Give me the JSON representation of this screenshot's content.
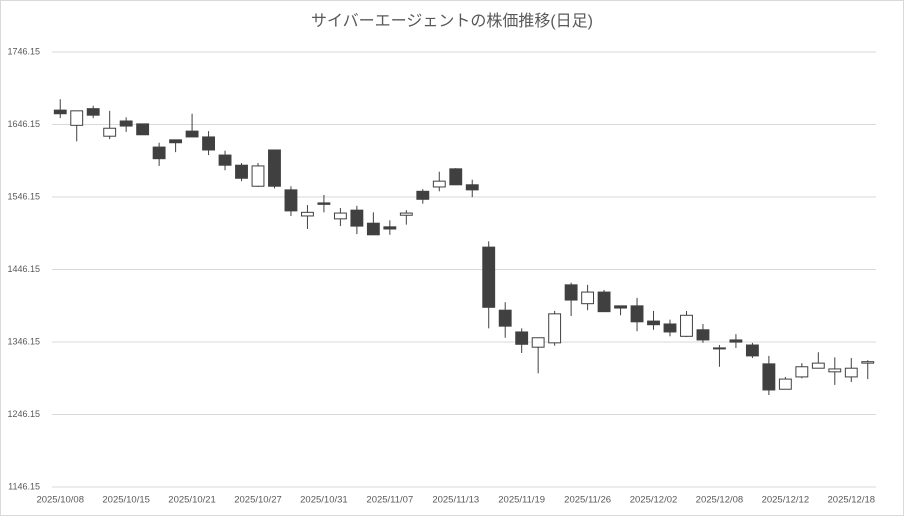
{
  "chart_data": {
    "type": "candlestick",
    "title": "サイバーエージェントの株価推移(日足)",
    "categories": [
      "2025/10/08",
      null,
      null,
      null,
      "2025/10/15",
      null,
      null,
      null,
      "2025/10/21",
      null,
      null,
      null,
      "2025/10/27",
      null,
      null,
      null,
      "2025/10/31",
      null,
      null,
      null,
      "2025/11/07",
      null,
      null,
      null,
      "2025/11/13",
      null,
      null,
      null,
      "2025/11/19",
      null,
      null,
      null,
      "2025/11/26",
      null,
      null,
      null,
      "2025/12/02",
      null,
      null,
      null,
      "2025/12/08",
      null,
      null,
      null,
      "2025/12/12",
      null,
      null,
      null,
      "2025/12/18",
      null
    ],
    "open": [
      1666,
      1645,
      1668,
      1630,
      1651,
      1647,
      1615,
      1625,
      1637,
      1629,
      1604,
      1590,
      1561,
      1611,
      1556,
      1520,
      1538,
      1516,
      1528,
      1510,
      1505,
      1521,
      1554,
      1560,
      1585,
      1563,
      1477,
      1390,
      1360,
      1339,
      1345,
      1425,
      1399,
      1415,
      1396,
      1396,
      1375,
      1371,
      1354,
      1363,
      1338,
      1349,
      1342,
      1316,
      1281,
      1298,
      1310,
      1305,
      1298,
      1317
    ],
    "high": [
      1681,
      1665,
      1672,
      1665,
      1656,
      1647,
      1621,
      1625,
      1661,
      1637,
      1610,
      1593,
      1593,
      1611,
      1561,
      1535,
      1549,
      1531,
      1534,
      1525,
      1514,
      1528,
      1557,
      1581,
      1586,
      1570,
      1485,
      1401,
      1365,
      1352,
      1389,
      1428,
      1425,
      1418,
      1396,
      1407,
      1389,
      1377,
      1389,
      1371,
      1342,
      1357,
      1345,
      1327,
      1298,
      1317,
      1332,
      1325,
      1324,
      1321
    ],
    "low": [
      1655,
      1623,
      1655,
      1626,
      1636,
      1632,
      1589,
      1608,
      1629,
      1604,
      1583,
      1568,
      1560,
      1558,
      1520,
      1502,
      1525,
      1506,
      1495,
      1494,
      1494,
      1508,
      1537,
      1554,
      1563,
      1546,
      1365,
      1352,
      1331,
      1303,
      1341,
      1382,
      1390,
      1388,
      1383,
      1361,
      1363,
      1354,
      1353,
      1345,
      1312,
      1338,
      1324,
      1273,
      1281,
      1296,
      1310,
      1287,
      1291,
      1295
    ],
    "close": [
      1661,
      1665,
      1659,
      1641,
      1644,
      1632,
      1599,
      1621,
      1629,
      1611,
      1590,
      1572,
      1589,
      1561,
      1527,
      1525,
      1536,
      1524,
      1506,
      1494,
      1502,
      1524,
      1543,
      1568,
      1563,
      1556,
      1394,
      1368,
      1343,
      1352,
      1385,
      1404,
      1415,
      1388,
      1393,
      1374,
      1370,
      1360,
      1383,
      1349,
      1337,
      1346,
      1327,
      1280,
      1295,
      1312,
      1317,
      1309,
      1310,
      1319
    ],
    "up_color": "#ffffff",
    "down_color": "#404040",
    "edge_color": "#404040",
    "ylim": [
      1146.15,
      1746.15
    ],
    "yticks": [
      1146.15,
      1246.15,
      1346.15,
      1446.15,
      1546.15,
      1646.15,
      1746.15
    ],
    "grid": true
  }
}
